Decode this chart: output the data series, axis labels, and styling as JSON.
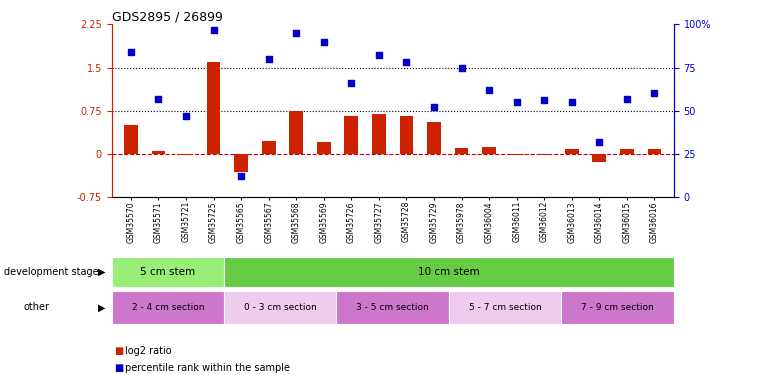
{
  "title": "GDS2895 / 26899",
  "samples": [
    "GSM35570",
    "GSM35571",
    "GSM35721",
    "GSM35725",
    "GSM35565",
    "GSM35567",
    "GSM35568",
    "GSM35569",
    "GSM35726",
    "GSM35727",
    "GSM35728",
    "GSM35729",
    "GSM35978",
    "GSM36004",
    "GSM36011",
    "GSM36012",
    "GSM36013",
    "GSM36014",
    "GSM36015",
    "GSM36016"
  ],
  "log2_ratio": [
    0.5,
    0.05,
    -0.02,
    1.6,
    -0.32,
    0.22,
    0.75,
    0.2,
    0.65,
    0.7,
    0.65,
    0.55,
    0.1,
    0.12,
    -0.02,
    -0.02,
    0.08,
    -0.15,
    0.08,
    0.08
  ],
  "percentile": [
    84,
    57,
    47,
    97,
    12,
    80,
    95,
    90,
    66,
    82,
    78,
    52,
    75,
    62,
    55,
    56,
    55,
    32,
    57,
    60
  ],
  "ylim_left": [
    -0.75,
    2.25
  ],
  "ylim_right": [
    0,
    100
  ],
  "hlines": [
    1.5,
    0.75
  ],
  "bar_color": "#cc2200",
  "dot_color": "#0000cc",
  "zeroline_color": "#cc0000",
  "dev_stage_groups": [
    {
      "label": "5 cm stem",
      "start": 0,
      "end": 4,
      "color": "#99ee77"
    },
    {
      "label": "10 cm stem",
      "start": 4,
      "end": 20,
      "color": "#66cc44"
    }
  ],
  "other_groups": [
    {
      "label": "2 - 4 cm section",
      "start": 0,
      "end": 4,
      "color": "#cc77cc"
    },
    {
      "label": "0 - 3 cm section",
      "start": 4,
      "end": 8,
      "color": "#eeccee"
    },
    {
      "label": "3 - 5 cm section",
      "start": 8,
      "end": 12,
      "color": "#cc77cc"
    },
    {
      "label": "5 - 7 cm section",
      "start": 12,
      "end": 16,
      "color": "#eeccee"
    },
    {
      "label": "7 - 9 cm section",
      "start": 16,
      "end": 20,
      "color": "#cc77cc"
    }
  ],
  "left_yticks": [
    -0.75,
    0,
    0.75,
    1.5,
    2.25
  ],
  "right_yticks": [
    0,
    25,
    50,
    75,
    100
  ],
  "row_labels": [
    "development stage",
    "other"
  ],
  "legend_items": [
    {
      "label": "log2 ratio",
      "color": "#cc2200"
    },
    {
      "label": "percentile rank within the sample",
      "color": "#0000cc"
    }
  ]
}
